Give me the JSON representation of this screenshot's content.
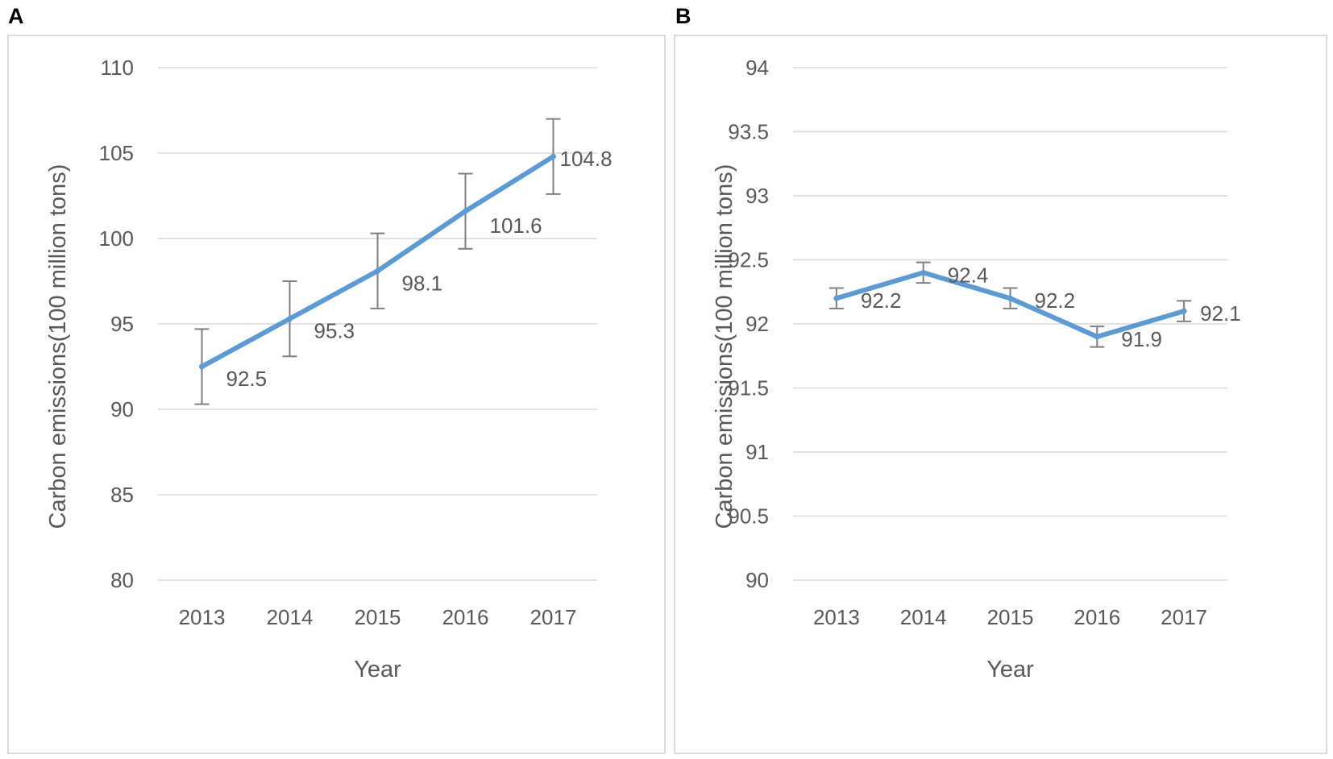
{
  "panels": [
    {
      "letter": "A",
      "chart_data": {
        "type": "line",
        "title": "",
        "xlabel": "Year",
        "ylabel": "Carbon emissions(100 million tons)",
        "categories": [
          "2013",
          "2014",
          "2015",
          "2016",
          "2017"
        ],
        "values": [
          92.5,
          95.3,
          98.1,
          101.6,
          104.8
        ],
        "data_labels": [
          "92.5",
          "95.3",
          "98.1",
          "101.6",
          "104.8"
        ],
        "error": [
          2.2,
          2.2,
          2.2,
          2.2,
          2.2
        ],
        "ylim": [
          80,
          110
        ],
        "yticks": [
          80,
          85,
          90,
          95,
          100,
          105,
          110
        ],
        "ytick_labels": [
          "80",
          "85",
          "90",
          "95",
          "100",
          "105",
          "110"
        ],
        "grid": true,
        "line_color": "#5b9bd5"
      }
    },
    {
      "letter": "B",
      "chart_data": {
        "type": "line",
        "title": "",
        "xlabel": "Year",
        "ylabel": "Carbon emissions(100 million tons)",
        "categories": [
          "2013",
          "2014",
          "2015",
          "2016",
          "2017"
        ],
        "values": [
          92.2,
          92.4,
          92.2,
          91.9,
          92.1
        ],
        "data_labels": [
          "92.2",
          "92.4",
          "92.2",
          "91.9",
          "92.1"
        ],
        "error": [
          0.08,
          0.08,
          0.08,
          0.08,
          0.08
        ],
        "ylim": [
          90,
          94
        ],
        "yticks": [
          90,
          90.5,
          91,
          91.5,
          92,
          92.5,
          93,
          93.5,
          94
        ],
        "ytick_labels": [
          "90",
          "90.5",
          "91",
          "91.5",
          "92",
          "92.5",
          "93",
          "93.5",
          "94"
        ],
        "grid": true,
        "line_color": "#5b9bd5"
      }
    }
  ]
}
